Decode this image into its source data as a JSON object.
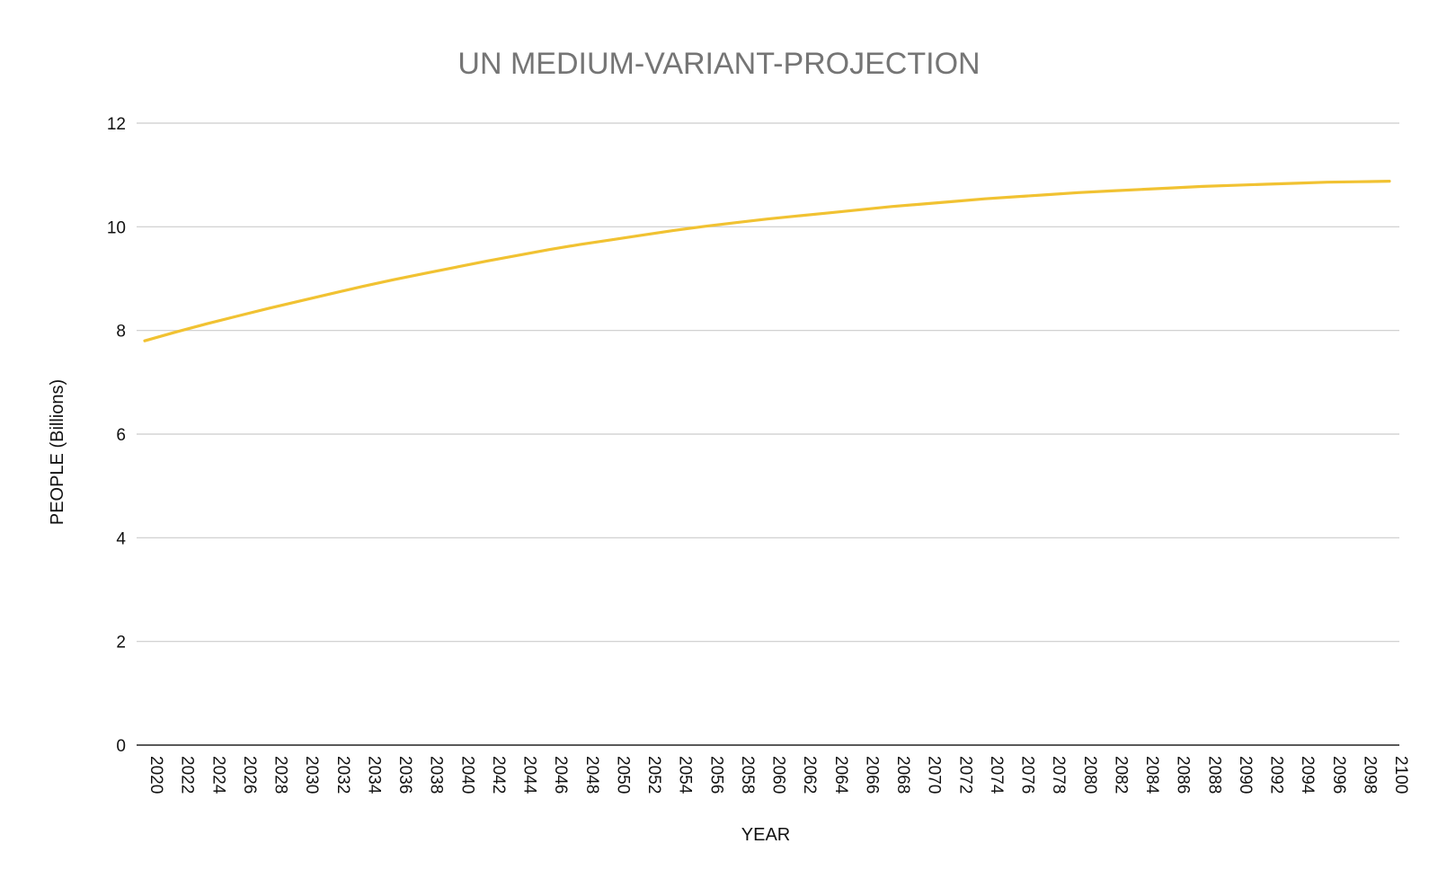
{
  "chart_data": {
    "type": "line",
    "title": "UN MEDIUM-VARIANT-PROJECTION",
    "xlabel": "YEAR",
    "ylabel": "PEOPLE (Billions)",
    "ylim": [
      0,
      12
    ],
    "yticks": [
      "0",
      "2",
      "4",
      "6",
      "8",
      "10",
      "12"
    ],
    "grid": true,
    "legend": "none",
    "colors": {
      "series": "#f1c232",
      "grid": "#cccccc",
      "title": "#757575"
    },
    "x": [
      "2020",
      "2022",
      "2024",
      "2026",
      "2028",
      "2030",
      "2032",
      "2034",
      "2036",
      "2038",
      "2040",
      "2042",
      "2044",
      "2046",
      "2048",
      "2050",
      "2052",
      "2054",
      "2056",
      "2058",
      "2060",
      "2062",
      "2064",
      "2066",
      "2068",
      "2070",
      "2072",
      "2074",
      "2076",
      "2078",
      "2080",
      "2082",
      "2084",
      "2086",
      "2088",
      "2090",
      "2092",
      "2094",
      "2096",
      "2098",
      "2100"
    ],
    "series": [
      {
        "values": [
          7.8,
          7.97,
          8.13,
          8.28,
          8.43,
          8.57,
          8.71,
          8.85,
          8.98,
          9.1,
          9.22,
          9.34,
          9.45,
          9.56,
          9.66,
          9.75,
          9.84,
          9.93,
          10.01,
          10.08,
          10.15,
          10.21,
          10.27,
          10.33,
          10.39,
          10.44,
          10.49,
          10.54,
          10.58,
          10.62,
          10.66,
          10.69,
          10.72,
          10.75,
          10.78,
          10.8,
          10.82,
          10.84,
          10.86,
          10.87,
          10.88
        ]
      }
    ]
  }
}
